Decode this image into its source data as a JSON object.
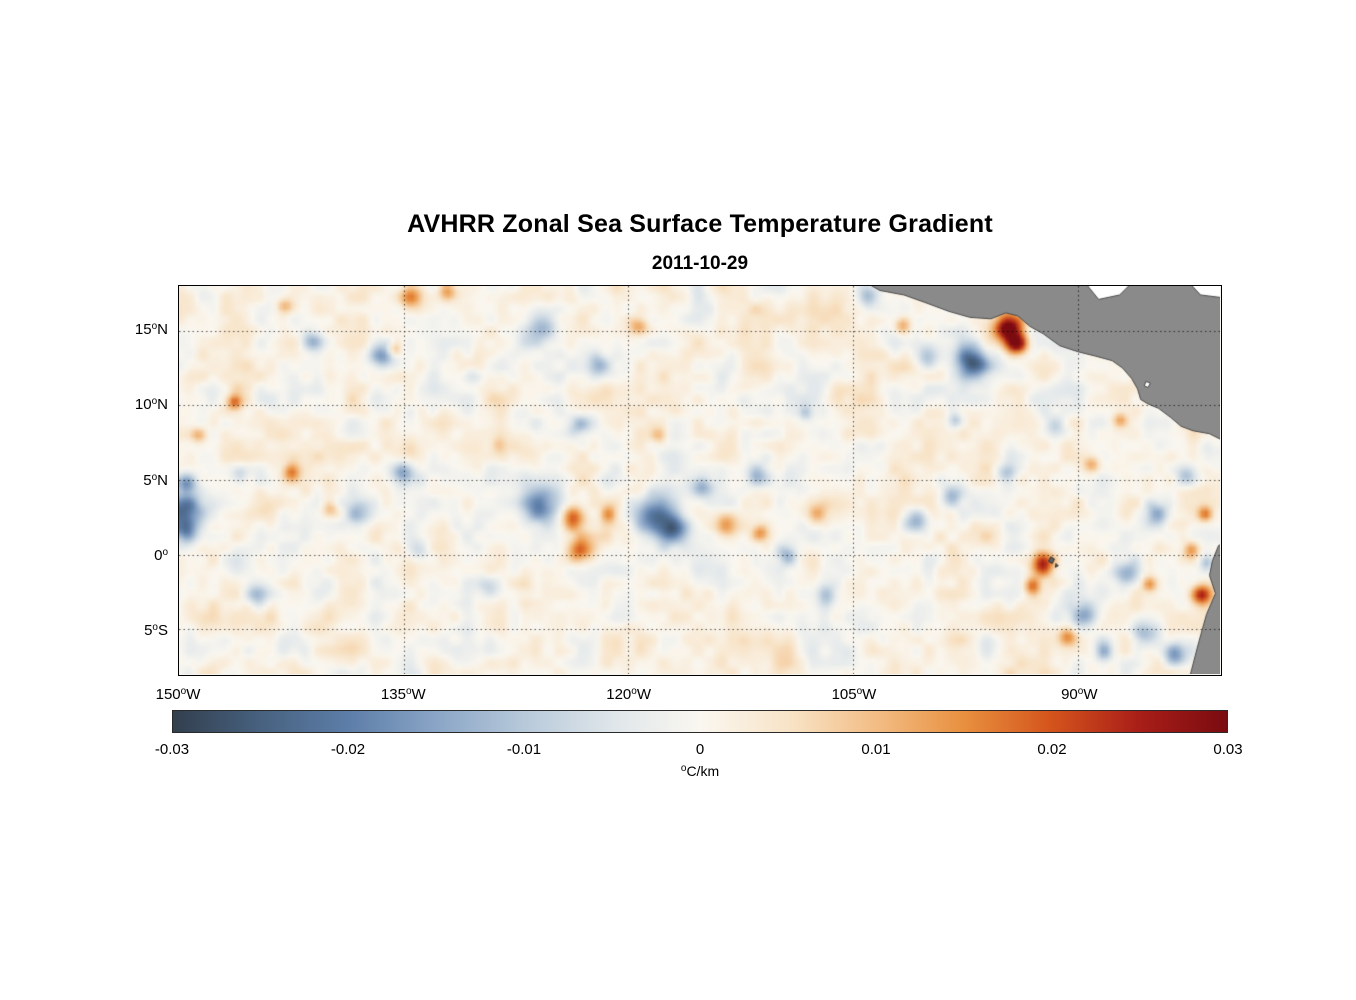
{
  "chart_data": {
    "type": "heatmap",
    "title": "AVHRR Zonal Sea Surface Temperature Gradient",
    "date": "2011-10-29",
    "deg_symbol": "o",
    "lon_range": [
      -150,
      -80.5
    ],
    "lat_range": [
      -8,
      18
    ],
    "grid": true,
    "grid_color": "rgba(0,0,0,0.75)",
    "x_ticks": [
      {
        "value": -150,
        "label": "150",
        "dir": "W"
      },
      {
        "value": -135,
        "label": "135",
        "dir": "W"
      },
      {
        "value": -120,
        "label": "120",
        "dir": "W"
      },
      {
        "value": -105,
        "label": "105",
        "dir": "W"
      },
      {
        "value": -90,
        "label": "90",
        "dir": "W"
      }
    ],
    "y_ticks": [
      {
        "value": 15,
        "label": "15",
        "dir": "N"
      },
      {
        "value": 10,
        "label": "10",
        "dir": "N"
      },
      {
        "value": 5,
        "label": "5",
        "dir": "N"
      },
      {
        "value": 0,
        "label": "0",
        "dir": ""
      },
      {
        "value": -5,
        "label": "5",
        "dir": "S"
      }
    ],
    "colorbar": {
      "min": -0.03,
      "max": 0.03,
      "ticks": [
        {
          "value": -0.03,
          "label": "-0.03"
        },
        {
          "value": -0.02,
          "label": "-0.02"
        },
        {
          "value": -0.01,
          "label": "-0.01"
        },
        {
          "value": 0,
          "label": "0"
        },
        {
          "value": 0.01,
          "label": "0.01"
        },
        {
          "value": 0.02,
          "label": "0.02"
        },
        {
          "value": 0.03,
          "label": "0.03"
        }
      ],
      "unit_deg": "o",
      "unit": "C/km"
    },
    "colormap": [
      [
        -0.03,
        "#323f4e"
      ],
      [
        -0.025,
        "#47617f"
      ],
      [
        -0.02,
        "#5d7ea9"
      ],
      [
        -0.015,
        "#8aa5c6"
      ],
      [
        -0.01,
        "#b7c9da"
      ],
      [
        -0.005,
        "#dfe6ea"
      ],
      [
        0.0,
        "#faf7f0"
      ],
      [
        0.005,
        "#f8e4c8"
      ],
      [
        0.01,
        "#f3bd85"
      ],
      [
        0.015,
        "#e8903f"
      ],
      [
        0.02,
        "#d4541c"
      ],
      [
        0.025,
        "#a81e18"
      ],
      [
        0.03,
        "#7a0b10"
      ]
    ],
    "noise": {
      "seed": 20111029,
      "bias": 0.0008,
      "amp1": 0.0042,
      "amp2": 0.0026,
      "nx1": 36,
      "ny1": 14,
      "nx2": 90,
      "ny2": 34
    },
    "features": [
      [
        -149.7,
        3.0,
        1.2,
        -0.025
      ],
      [
        -149.5,
        4.8,
        0.7,
        -0.018
      ],
      [
        -149.6,
        1.5,
        0.8,
        -0.016
      ],
      [
        -144.9,
        -2.7,
        0.8,
        -0.011
      ],
      [
        -141.1,
        14.3,
        0.7,
        -0.012
      ],
      [
        -136.4,
        13.2,
        0.9,
        -0.018
      ],
      [
        -135.0,
        5.5,
        0.8,
        -0.016
      ],
      [
        -137.9,
        2.7,
        0.9,
        -0.012
      ],
      [
        -133.9,
        0.3,
        0.7,
        -0.01
      ],
      [
        -125.6,
        15.3,
        1.1,
        -0.013
      ],
      [
        -125.9,
        3.3,
        1.2,
        -0.018
      ],
      [
        -123.2,
        8.7,
        0.7,
        -0.009
      ],
      [
        -121.9,
        12.7,
        0.7,
        -0.011
      ],
      [
        -118.2,
        2.5,
        1.5,
        -0.023
      ],
      [
        -116.9,
        1.6,
        1.0,
        -0.02
      ],
      [
        -115.0,
        4.6,
        0.8,
        -0.015
      ],
      [
        -111.3,
        5.3,
        0.8,
        -0.013
      ],
      [
        -109.3,
        0.0,
        0.7,
        -0.012
      ],
      [
        -106.6,
        -2.7,
        0.7,
        -0.01
      ],
      [
        -103.9,
        17.3,
        0.7,
        -0.012
      ],
      [
        -100.6,
        2.3,
        0.9,
        -0.016
      ],
      [
        -98.3,
        4.0,
        0.7,
        -0.012
      ],
      [
        -99.9,
        13.3,
        0.8,
        -0.013
      ],
      [
        -96.9,
        12.9,
        1.1,
        -0.027
      ],
      [
        -94.6,
        5.3,
        0.7,
        -0.012
      ],
      [
        -91.3,
        8.7,
        0.7,
        -0.011
      ],
      [
        -89.3,
        -4.0,
        0.9,
        -0.013
      ],
      [
        -86.6,
        -1.3,
        0.8,
        -0.013
      ],
      [
        -85.3,
        -5.3,
        0.9,
        -0.015
      ],
      [
        -83.3,
        -6.7,
        0.8,
        -0.017
      ],
      [
        -84.6,
        2.7,
        0.8,
        -0.013
      ],
      [
        -82.6,
        5.3,
        0.7,
        -0.011
      ],
      [
        -81.6,
        12.0,
        0.7,
        -0.013
      ],
      [
        -81.2,
        -0.5,
        0.5,
        -0.012
      ],
      [
        -129.2,
        -2.0,
        0.7,
        -0.008
      ],
      [
        -145.9,
        5.3,
        0.6,
        -0.008
      ],
      [
        -98.0,
        9.0,
        0.5,
        -0.01
      ],
      [
        -108.0,
        9.5,
        0.5,
        -0.009
      ],
      [
        -130.5,
        12.0,
        0.6,
        -0.009
      ],
      [
        -88.0,
        -6.5,
        0.6,
        -0.012
      ],
      [
        -84.0,
        12.0,
        0.5,
        -0.011
      ],
      [
        -134.5,
        17.3,
        0.8,
        0.016
      ],
      [
        -146.3,
        10.2,
        0.45,
        0.014
      ],
      [
        -142.5,
        5.5,
        0.55,
        0.013
      ],
      [
        -139.9,
        3.0,
        0.55,
        0.01
      ],
      [
        -123.6,
        2.5,
        0.85,
        0.018
      ],
      [
        -123.2,
        0.2,
        0.85,
        0.018
      ],
      [
        -119.2,
        15.3,
        0.6,
        0.013
      ],
      [
        -113.3,
        2.0,
        0.8,
        0.016
      ],
      [
        -111.1,
        1.5,
        0.55,
        0.012
      ],
      [
        -107.3,
        2.7,
        0.55,
        0.01
      ],
      [
        -101.6,
        15.3,
        0.55,
        0.012
      ],
      [
        -94.5,
        15.2,
        0.9,
        0.032
      ],
      [
        -93.9,
        14.1,
        0.7,
        0.028
      ],
      [
        -92.2,
        -0.6,
        0.8,
        0.026
      ],
      [
        -92.9,
        -2.1,
        0.55,
        0.015
      ],
      [
        -88.9,
        6.0,
        0.55,
        0.013
      ],
      [
        -81.6,
        -2.7,
        0.7,
        0.024
      ],
      [
        -82.3,
        0.3,
        0.55,
        0.013
      ],
      [
        -142.9,
        16.7,
        0.55,
        0.01
      ],
      [
        -128.6,
        7.3,
        0.55,
        0.008
      ],
      [
        -117.9,
        8.0,
        0.55,
        0.01
      ],
      [
        -81.3,
        2.7,
        0.5,
        0.015
      ],
      [
        -135.6,
        13.7,
        0.45,
        0.012
      ],
      [
        -121.2,
        2.7,
        0.55,
        0.011
      ],
      [
        -148.7,
        8.0,
        0.5,
        0.009
      ],
      [
        -132.0,
        17.6,
        0.6,
        0.012
      ],
      [
        -87.0,
        9.0,
        0.5,
        0.012
      ],
      [
        -85.0,
        -2.0,
        0.5,
        0.012
      ],
      [
        -90.5,
        -5.5,
        0.6,
        0.013
      ]
    ],
    "land": {
      "fill": "#8a8a8a",
      "edge": "#4a4a4a",
      "island_fill": "#5f5f5f",
      "mainland": [
        [
          -104.8,
          18.6
        ],
        [
          -103.2,
          17.7
        ],
        [
          -101.6,
          17.4
        ],
        [
          -100.2,
          16.9
        ],
        [
          -98.6,
          16.3
        ],
        [
          -97.2,
          15.9
        ],
        [
          -95.8,
          15.8
        ],
        [
          -94.8,
          16.2
        ],
        [
          -94.0,
          16.0
        ],
        [
          -93.2,
          15.3
        ],
        [
          -92.3,
          14.8
        ],
        [
          -91.2,
          14.0
        ],
        [
          -90.0,
          13.6
        ],
        [
          -88.8,
          13.3
        ],
        [
          -87.7,
          13.0
        ],
        [
          -87.0,
          12.5
        ],
        [
          -86.4,
          11.8
        ],
        [
          -86.0,
          11.1
        ],
        [
          -85.8,
          10.4
        ],
        [
          -85.3,
          10.1
        ],
        [
          -84.6,
          9.8
        ],
        [
          -83.8,
          9.2
        ],
        [
          -83.1,
          8.6
        ],
        [
          -82.3,
          8.3
        ],
        [
          -81.2,
          8.1
        ],
        [
          -80.2,
          7.6
        ],
        [
          -79.5,
          7.4
        ],
        [
          -79.5,
          18.6
        ]
      ],
      "cutouts": [
        [
          [
            -89.9,
            18.7
          ],
          [
            -88.6,
            17.1
          ],
          [
            -87.2,
            17.4
          ],
          [
            -85.9,
            18.7
          ]
        ],
        [
          [
            -83.0,
            18.7
          ],
          [
            -81.8,
            17.4
          ],
          [
            -80.2,
            17.2
          ],
          [
            -79.5,
            17.4
          ],
          [
            -79.5,
            18.7
          ]
        ],
        [
          [
            -85.45,
            11.6
          ],
          [
            -85.15,
            11.5
          ],
          [
            -85.3,
            11.2
          ],
          [
            -85.55,
            11.3
          ]
        ]
      ],
      "south_america": [
        [
          -79.5,
          1.2
        ],
        [
          -80.6,
          0.6
        ],
        [
          -81.0,
          -0.4
        ],
        [
          -81.2,
          -1.4
        ],
        [
          -80.8,
          -2.6
        ],
        [
          -81.4,
          -4.0
        ],
        [
          -81.9,
          -5.8
        ],
        [
          -82.6,
          -8.5
        ],
        [
          -79.5,
          -8.5
        ]
      ],
      "islands": [
        [
          [
            -91.8,
            -0.15
          ],
          [
            -91.55,
            -0.3
          ],
          [
            -91.7,
            -0.6
          ],
          [
            -91.95,
            -0.45
          ]
        ],
        [
          [
            -91.45,
            -0.6
          ],
          [
            -91.3,
            -0.75
          ],
          [
            -91.5,
            -0.85
          ]
        ]
      ]
    }
  }
}
